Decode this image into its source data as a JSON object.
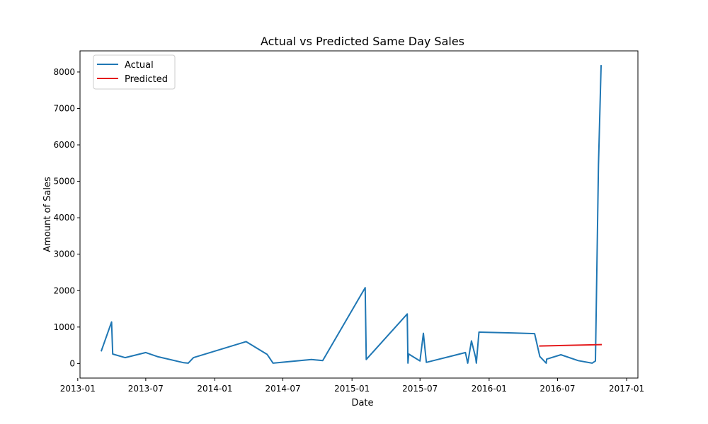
{
  "chart_data": {
    "type": "line",
    "title": "Actual vs Predicted Same Day Sales",
    "xlabel": "Date",
    "ylabel": "Amount of Sales",
    "xlim": [
      "2013-01-07",
      "2017-01-31"
    ],
    "ylim": [
      -400,
      8580
    ],
    "x_ticks": [
      "2013-01",
      "2013-07",
      "2014-01",
      "2014-07",
      "2015-01",
      "2015-07",
      "2016-01",
      "2016-07",
      "2017-01"
    ],
    "y_ticks": [
      0,
      1000,
      2000,
      3000,
      4000,
      5000,
      6000,
      7000,
      8000
    ],
    "grid": false,
    "legend": "top-left",
    "series": [
      {
        "name": "Actual",
        "color": "#1f77b4",
        "x": [
          "2013-03-05",
          "2013-04-01",
          "2013-04-04",
          "2013-05-07",
          "2013-07-01",
          "2013-08-01",
          "2013-10-10",
          "2013-10-22",
          "2013-11-05",
          "2014-03-25",
          "2014-05-20",
          "2014-06-05",
          "2014-09-15",
          "2014-10-15",
          "2015-02-05",
          "2015-02-08",
          "2015-05-28",
          "2015-05-30",
          "2015-06-01",
          "2015-07-01",
          "2015-07-10",
          "2015-07-18",
          "2015-08-10",
          "2015-10-30",
          "2015-11-05",
          "2015-11-15",
          "2015-11-26",
          "2015-11-28",
          "2015-12-05",
          "2016-03-01",
          "2016-05-01",
          "2016-05-15",
          "2016-06-01",
          "2016-06-02",
          "2016-07-10",
          "2016-08-25",
          "2016-10-01",
          "2016-10-10",
          "2016-10-18",
          "2016-10-25"
        ],
        "values": [
          350,
          1140,
          260,
          160,
          300,
          190,
          20,
          10,
          160,
          600,
          250,
          10,
          110,
          80,
          2080,
          110,
          1360,
          10,
          260,
          70,
          830,
          30,
          90,
          300,
          10,
          620,
          160,
          10,
          860,
          840,
          820,
          190,
          10,
          120,
          240,
          80,
          10,
          70,
          5450,
          8170
        ]
      },
      {
        "name": "Predicted",
        "color": "#e41a1c",
        "x": [
          "2016-05-15",
          "2016-10-25"
        ],
        "values": [
          480,
          520
        ]
      }
    ]
  }
}
